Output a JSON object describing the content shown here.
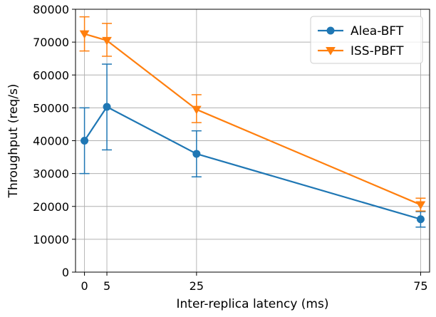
{
  "chart_data": {
    "type": "line",
    "title": "",
    "xlabel": "Inter-replica latency (ms)",
    "ylabel": "Throughput (req/s)",
    "x": [
      0,
      5,
      25,
      75
    ],
    "xticks": [
      0,
      5,
      25,
      75
    ],
    "yticks": [
      0,
      10000,
      20000,
      30000,
      40000,
      50000,
      60000,
      70000,
      80000
    ],
    "xlim": [
      -2,
      77
    ],
    "ylim": [
      0,
      80000
    ],
    "grid": true,
    "legend_position": "top-right",
    "series": [
      {
        "name": "Alea-BFT",
        "color": "#1f77b4",
        "marker": "circle",
        "values": [
          40000,
          50300,
          36000,
          16100
        ],
        "err_low": [
          30000,
          37200,
          29000,
          13700
        ],
        "err_high": [
          50000,
          63300,
          43000,
          18400
        ]
      },
      {
        "name": "ISS-PBFT",
        "color": "#ff7f0e",
        "marker": "triangle-down",
        "values": [
          72500,
          70500,
          49500,
          20500
        ],
        "err_low": [
          67300,
          65700,
          45500,
          18600
        ],
        "err_high": [
          77700,
          75700,
          54000,
          22500
        ]
      }
    ]
  }
}
